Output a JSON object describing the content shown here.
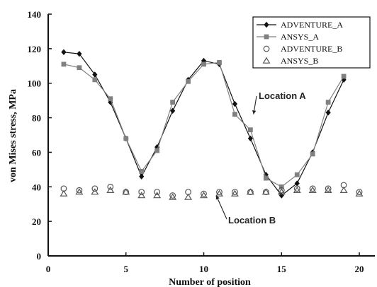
{
  "chart_data": {
    "type": "line",
    "xlabel": "Number of position",
    "ylabel": "von Mises stress, MPa",
    "xlim": [
      0,
      21
    ],
    "ylim": [
      0,
      140
    ],
    "xticks": [
      0,
      5,
      10,
      15,
      20
    ],
    "yticks": [
      0,
      20,
      40,
      60,
      80,
      100,
      120,
      140
    ],
    "grid": false,
    "legend_position": "top-right",
    "series": [
      {
        "name": "ADVENTURE_A",
        "marker": "diamond-filled",
        "line": true,
        "color": "#111111",
        "x": [
          1,
          2,
          3,
          4,
          5,
          6,
          7,
          8,
          9,
          10,
          11,
          12,
          13,
          14,
          15,
          16,
          17,
          18,
          19
        ],
        "values": [
          118,
          117,
          105,
          89,
          68,
          46,
          63,
          84,
          102,
          113,
          111,
          88,
          68,
          47,
          35,
          42,
          60,
          83,
          102
        ]
      },
      {
        "name": "ANSYS_A",
        "marker": "square-filled",
        "line": true,
        "color": "#808080",
        "x": [
          1,
          2,
          3,
          4,
          5,
          6,
          7,
          8,
          9,
          10,
          11,
          12,
          13,
          14,
          15,
          16,
          17,
          18,
          19
        ],
        "values": [
          111,
          109,
          102,
          91,
          68,
          49,
          61,
          89,
          101,
          111,
          112,
          82,
          73,
          45,
          40,
          47,
          59,
          89,
          104
        ]
      },
      {
        "name": "ADVENTURE_B",
        "marker": "circle-open",
        "line": false,
        "color": "#555555",
        "x": [
          1,
          2,
          3,
          4,
          5,
          6,
          7,
          8,
          9,
          10,
          11,
          12,
          13,
          14,
          15,
          16,
          17,
          18,
          19,
          20
        ],
        "values": [
          39,
          38,
          39,
          40,
          37,
          37,
          37,
          35,
          37,
          36,
          37,
          37,
          37,
          37,
          38,
          39,
          39,
          39,
          41,
          37
        ]
      },
      {
        "name": "ANSYS_B",
        "marker": "triangle-open",
        "line": false,
        "color": "#555555",
        "x": [
          1,
          2,
          3,
          4,
          5,
          6,
          7,
          8,
          9,
          10,
          11,
          12,
          13,
          14,
          15,
          16,
          17,
          18,
          19,
          20
        ],
        "values": [
          36,
          37,
          37,
          38,
          37,
          35,
          35,
          34,
          34,
          35,
          36,
          36,
          37,
          37,
          37,
          38,
          38,
          38,
          38,
          36
        ]
      }
    ],
    "annotations": [
      {
        "text": "Location A",
        "target_x": 13.2,
        "target_y": 82
      },
      {
        "text": "Location B",
        "target_x": 10.8,
        "target_y": 35
      }
    ]
  }
}
